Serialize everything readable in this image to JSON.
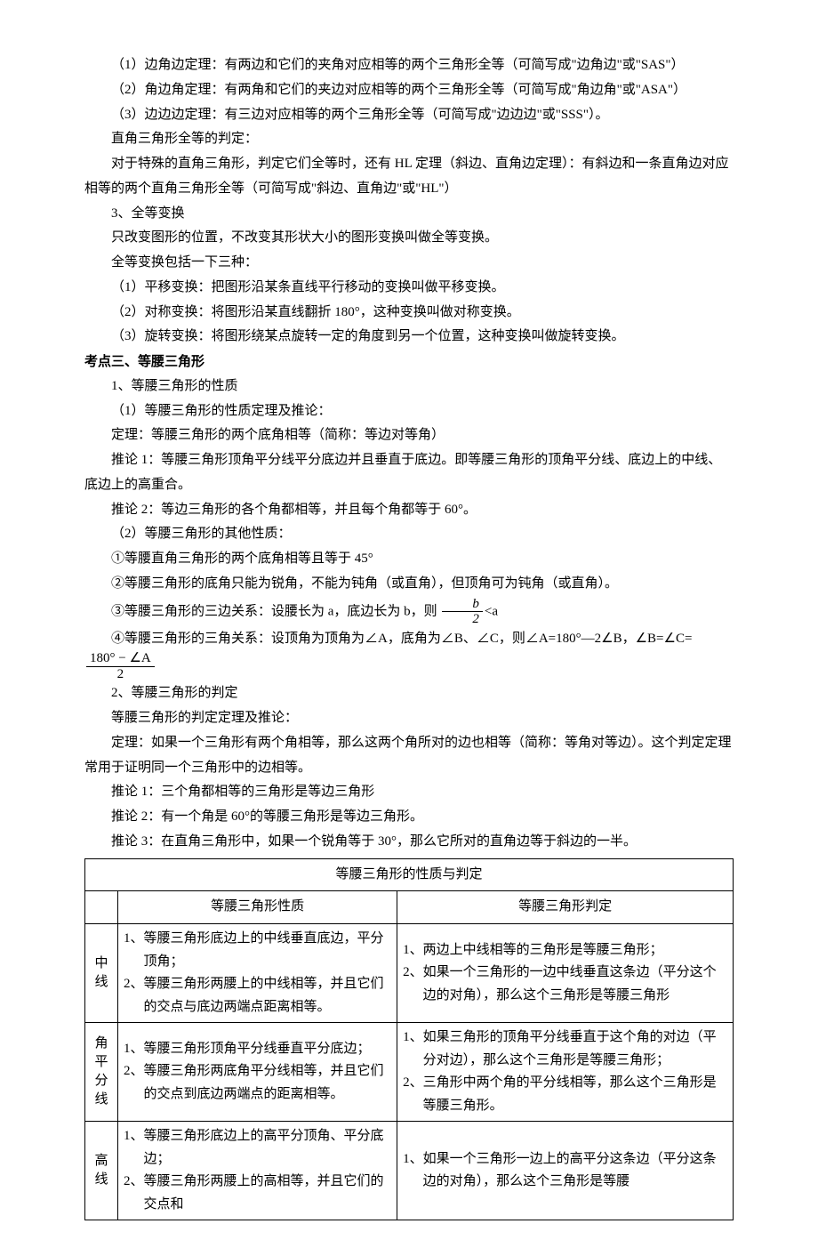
{
  "lines": {
    "l1": "（1）边角边定理：有两边和它们的夹角对应相等的两个三角形全等（可简写成\"边角边\"或\"SAS\"）",
    "l2": "（2）角边角定理：有两角和它们的夹边对应相等的两个三角形全等（可简写成\"角边角\"或\"ASA\"）",
    "l3": "（3）边边边定理：有三边对应相等的两个三角形全等（可简写成\"边边边\"或\"SSS\"）。",
    "l4": "直角三角形全等的判定：",
    "l5": "对于特殊的直角三角形，判定它们全等时，还有 HL 定理（斜边、直角边定理）：有斜边和一条直角边对应相等的两个直角三角形全等（可简写成\"斜边、直角边\"或\"HL\"）",
    "l6": "3、全等变换",
    "l7": "只改变图形的位置，不改变其形状大小的图形变换叫做全等变换。",
    "l8": "全等变换包括一下三种：",
    "l9": "（1）平移变换：把图形沿某条直线平行移动的变换叫做平移变换。",
    "l10": "（2）对称变换：将图形沿某直线翻折 180°，这种变换叫做对称变换。",
    "l11": "（3）旋转变换：将图形绕某点旋转一定的角度到另一个位置，这种变换叫做旋转变换。",
    "h1": "考点三、等腰三角形",
    "l12": "1、等腰三角形的性质",
    "l13": "（1）等腰三角形的性质定理及推论：",
    "l14": "定理：等腰三角形的两个底角相等（简称：等边对等角）",
    "l15": "推论 1：等腰三角形顶角平分线平分底边并且垂直于底边。即等腰三角形的顶角平分线、底边上的中线、底边上的高重合。",
    "l16": "推论 2：等边三角形的各个角都相等，并且每个角都等于 60°。",
    "l17": "（2）等腰三角形的其他性质：",
    "l18": "①等腰直角三角形的两个底角相等且等于 45°",
    "l19": "②等腰三角形的底角只能为锐角，不能为钝角（或直角），但顶角可为钝角（或直角）。",
    "l20a": "③等腰三角形的三边关系：设腰长为 a，底边长为 b，则",
    "l20b": "<a",
    "l21a": "④等腰三角形的三角关系：设顶角为顶角为∠A，底角为∠B、∠C，则∠A=180°—2∠B，∠B=∠C=",
    "l22": "2、等腰三角形的判定",
    "l23": "等腰三角形的判定定理及推论：",
    "l24": "定理：如果一个三角形有两个角相等，那么这两个角所对的边也相等（简称：等角对等边）。这个判定定理常用于证明同一个三角形中的边相等。",
    "l25": "推论 1：三个角都相等的三角形是等边三角形",
    "l26": "推论 2：有一个角是 60°的等腰三角形是等边三角形。",
    "l27": "推论 3：在直角三角形中，如果一个锐角等于 30°，那么它所对的直角边等于斜边的一半。"
  },
  "frac1": {
    "num": "b",
    "den": "2"
  },
  "frac2": {
    "num": "180° − ∠A",
    "den": "2"
  },
  "table": {
    "title": "等腰三角形的性质与判定",
    "col1": "等腰三角形性质",
    "col2": "等腰三角形判定",
    "row1": {
      "label": "中线",
      "prop1": "1、等腰三角形底边上的中线垂直底边，平分顶角；",
      "prop2": "2、等腰三角形两腰上的中线相等，并且它们的交点与底边两端点距离相等。",
      "jud1": "1、两边上中线相等的三角形是等腰三角形；",
      "jud2": "2、如果一个三角形的一边中线垂直这条边（平分这个边的对角），那么这个三角形是等腰三角形"
    },
    "row2": {
      "label": "角平分线",
      "prop1": "1、等腰三角形顶角平分线垂直平分底边；",
      "prop2": "2、等腰三角形两底角平分线相等，并且它们的交点到底边两端点的距离相等。",
      "jud1": "1、如果三角形的顶角平分线垂直于这个角的对边（平分对边），那么这个三角形是等腰三角形；",
      "jud2": "2、三角形中两个角的平分线相等，那么这个三角形是等腰三角形。"
    },
    "row3": {
      "label": "高线",
      "prop1": "1、等腰三角形底边上的高平分顶角、平分底边；",
      "prop2": "2、等腰三角形两腰上的高相等，并且它们的交点和",
      "jud1": "1、如果一个三角形一边上的高平分这条边（平分这条边的对角），那么这个三角形是等腰"
    }
  }
}
